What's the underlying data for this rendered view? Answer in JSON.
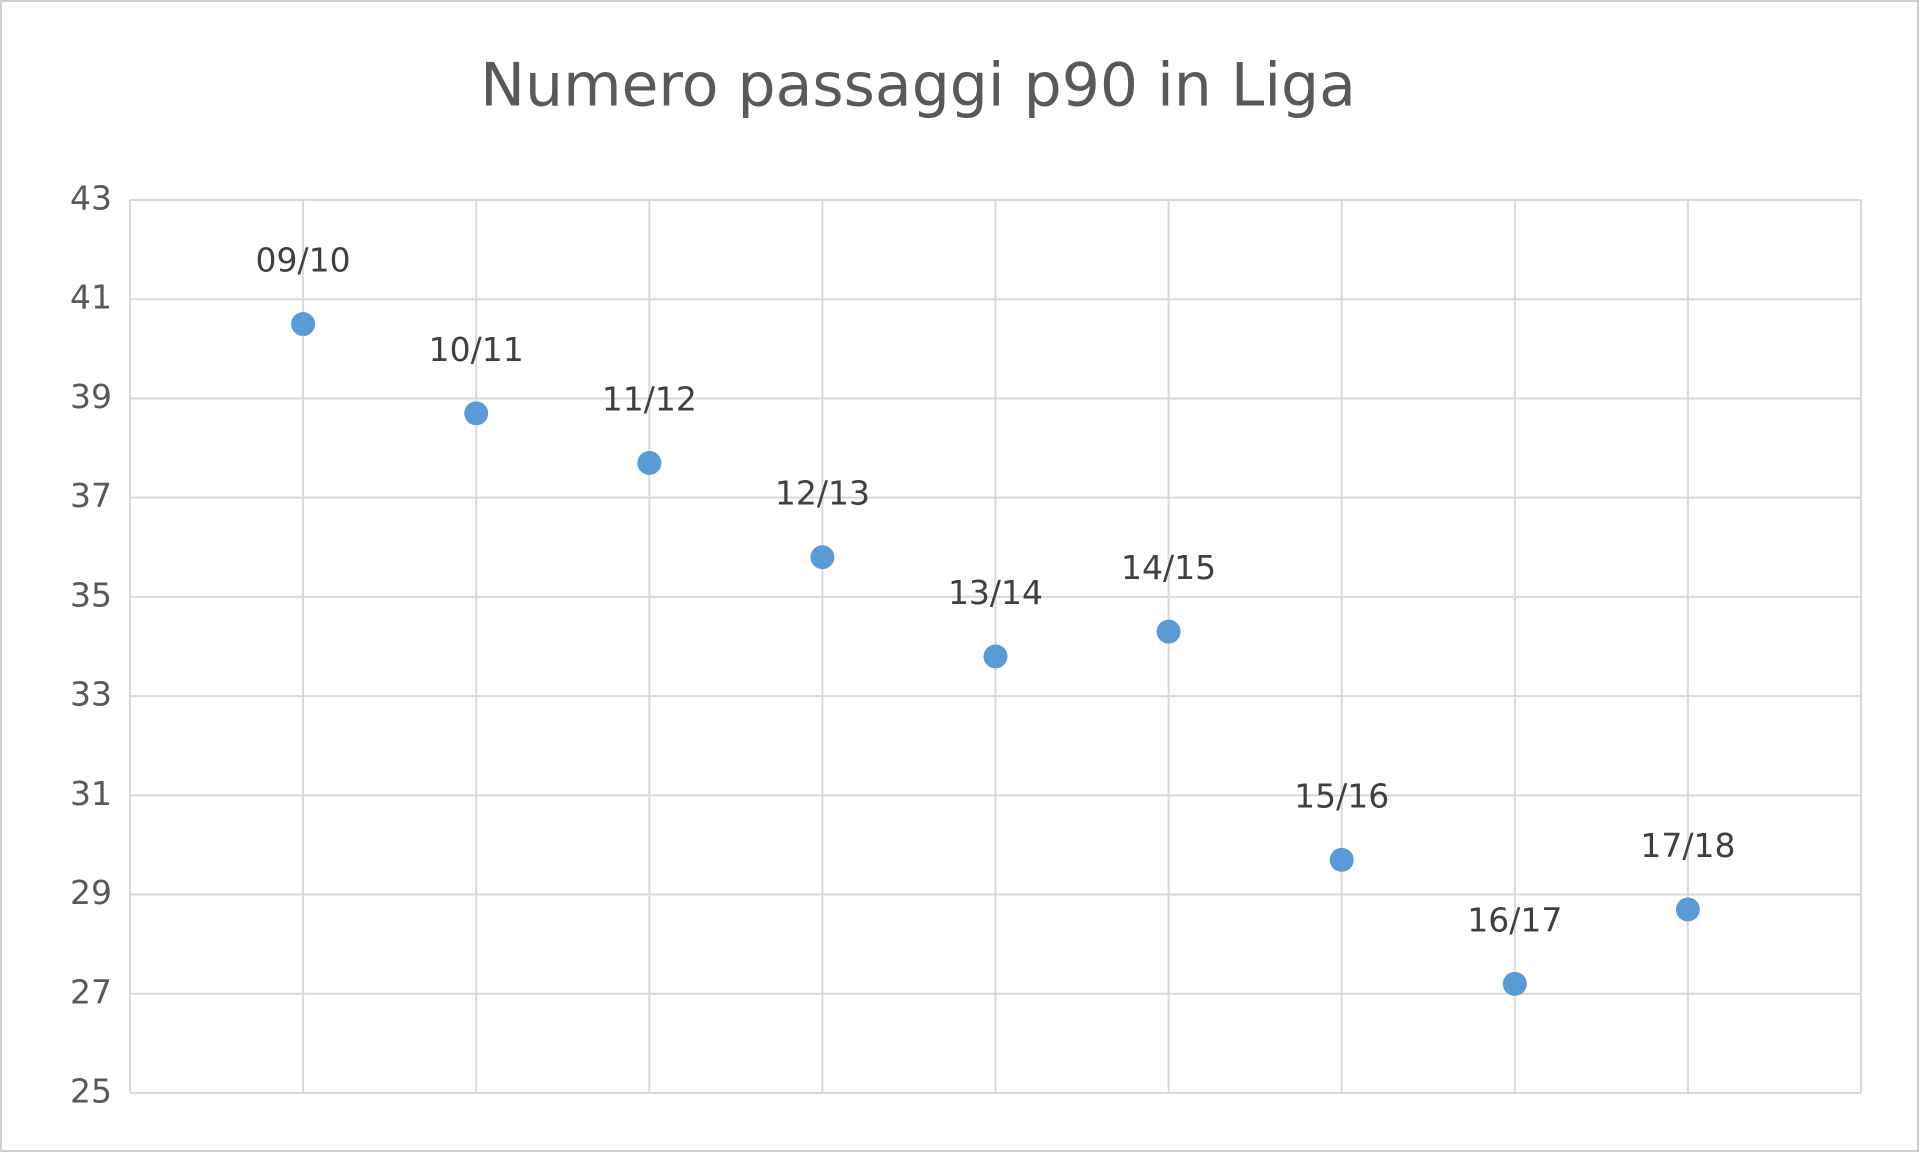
{
  "chart_data": {
    "type": "scatter",
    "title": "Numero passaggi p90 in Liga",
    "categories": [
      "09/10",
      "10/11",
      "11/12",
      "12/13",
      "13/14",
      "14/15",
      "15/16",
      "16/17",
      "17/18"
    ],
    "values": [
      40.5,
      38.7,
      37.7,
      35.8,
      33.8,
      34.3,
      29.7,
      27.2,
      28.7
    ],
    "color": "#5b9bd5",
    "ylim": [
      25,
      43
    ],
    "yticks": [
      25,
      27,
      29,
      31,
      33,
      35,
      37,
      39,
      41,
      43
    ],
    "grid": true
  }
}
